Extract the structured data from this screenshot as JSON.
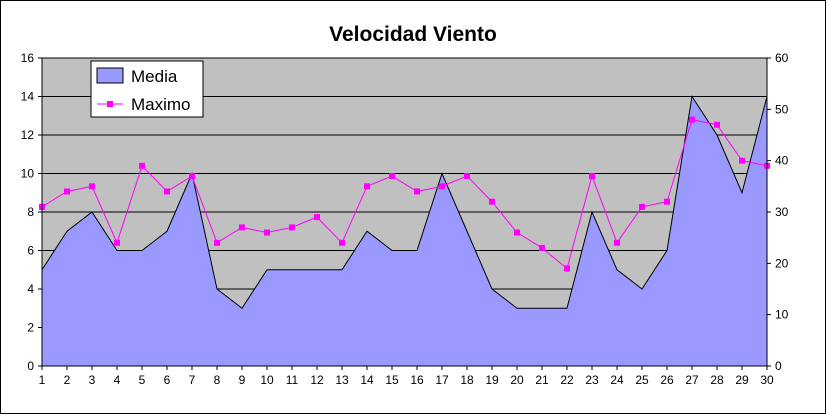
{
  "chart_data": {
    "type": "area",
    "title": "Velocidad Viento",
    "categories": [
      "1",
      "2",
      "3",
      "4",
      "5",
      "6",
      "7",
      "8",
      "9",
      "10",
      "11",
      "12",
      "13",
      "14",
      "15",
      "16",
      "17",
      "18",
      "19",
      "20",
      "21",
      "22",
      "23",
      "24",
      "25",
      "26",
      "27",
      "28",
      "29",
      "30"
    ],
    "series": [
      {
        "name": "Media",
        "type": "area",
        "axis": "left",
        "color": "#9999FF",
        "values": [
          5,
          7,
          8,
          6,
          6,
          7,
          10,
          4,
          3,
          5,
          5,
          5,
          5,
          7,
          6,
          6,
          10,
          7,
          4,
          3,
          3,
          3,
          8,
          5,
          4,
          6,
          14,
          12,
          9,
          14
        ]
      },
      {
        "name": "Maximo",
        "type": "line",
        "axis": "right",
        "color": "#FF00FF",
        "values": [
          31,
          34,
          35,
          24,
          39,
          34,
          37,
          24,
          27,
          26,
          27,
          29,
          24,
          35,
          37,
          34,
          35,
          37,
          32,
          26,
          23,
          19,
          37,
          24,
          31,
          32,
          48,
          47,
          40,
          39
        ]
      }
    ],
    "y_left": {
      "min": 0,
      "max": 16,
      "step": 2,
      "ticks": [
        "0",
        "2",
        "4",
        "6",
        "8",
        "10",
        "12",
        "14",
        "16"
      ]
    },
    "y_right": {
      "min": 0,
      "max": 60,
      "step": 10,
      "ticks": [
        "0",
        "10",
        "20",
        "30",
        "40",
        "50",
        "60"
      ]
    },
    "grid": true,
    "legend_position": "top-left",
    "plot_background": "#C0C0C0"
  }
}
